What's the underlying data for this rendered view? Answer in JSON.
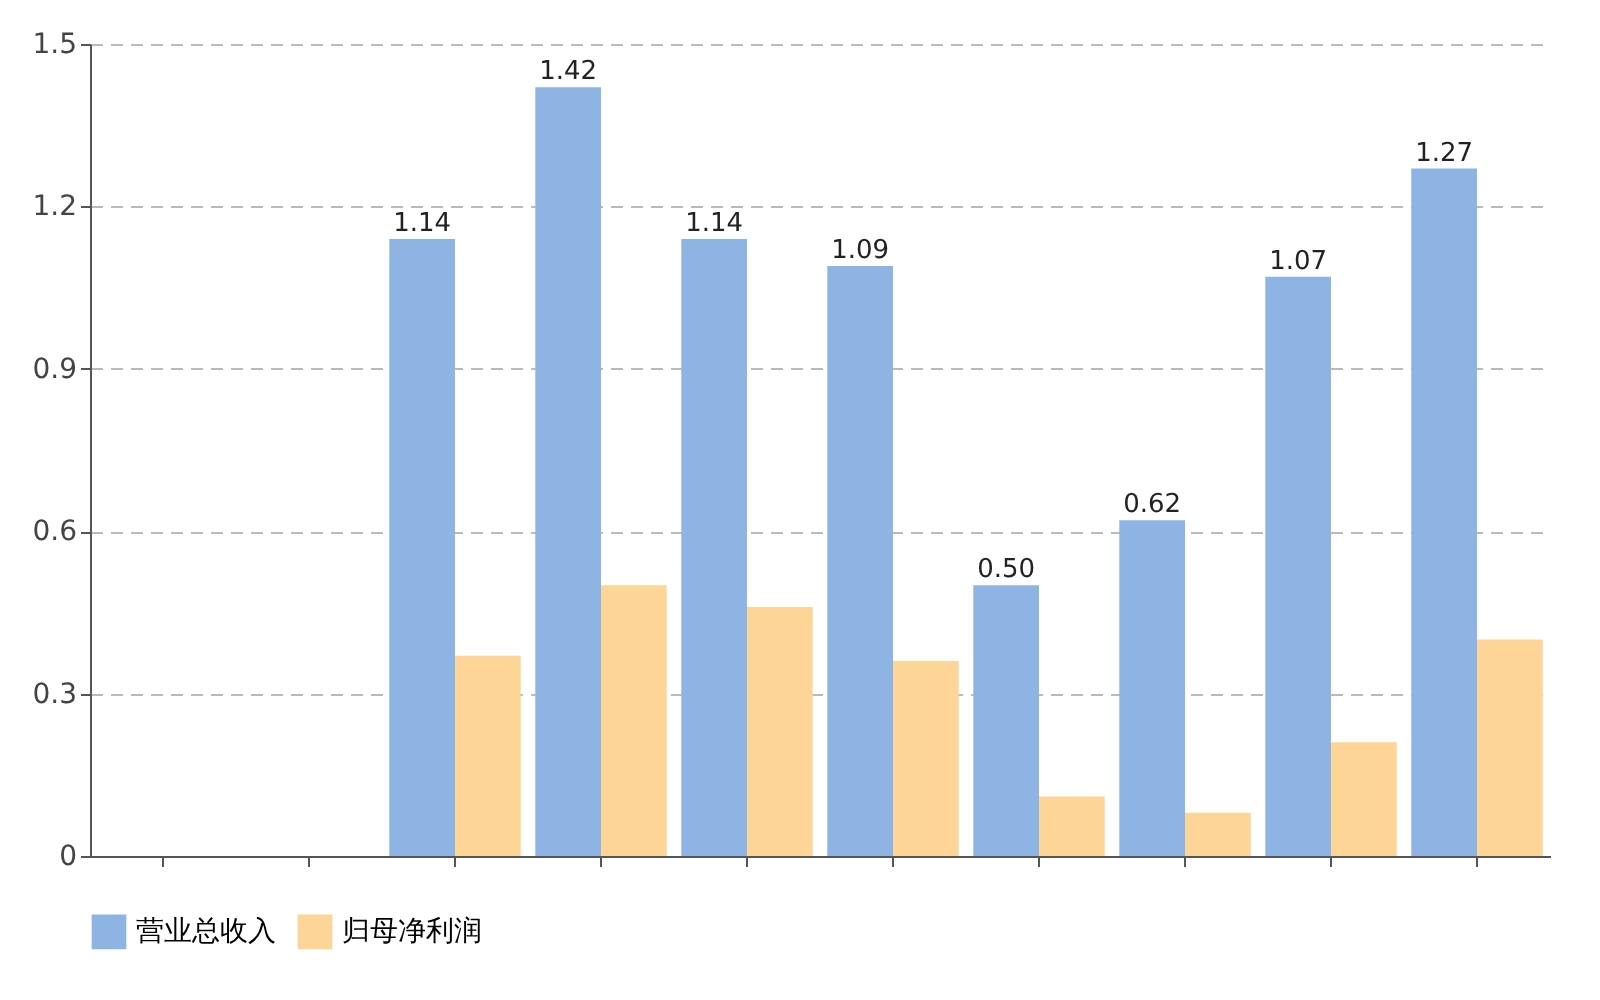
{
  "chart_data": {
    "type": "bar",
    "categories": [
      null,
      null,
      null,
      null,
      null,
      null,
      null,
      null,
      null,
      null
    ],
    "series": [
      {
        "name": "营业总收入",
        "color": "#8eb4e3",
        "values": [
          null,
          null,
          1.14,
          1.42,
          1.14,
          1.09,
          0.5,
          0.62,
          1.07,
          1.27
        ],
        "value_labels": [
          null,
          null,
          "1.14",
          "1.42",
          "1.14",
          "1.09",
          "0.50",
          "0.62",
          "1.07",
          "1.27"
        ]
      },
      {
        "name": "归母净利润",
        "color": "#fdd596",
        "values": [
          null,
          null,
          0.37,
          0.5,
          0.46,
          0.36,
          0.11,
          0.08,
          0.21,
          0.4
        ]
      }
    ],
    "ylim": [
      0,
      1.5
    ],
    "yticks": [
      0,
      0.3,
      0.6,
      0.9,
      1.2,
      1.5
    ],
    "grid": "y",
    "line_style": "dashed",
    "legend": "bottom"
  }
}
